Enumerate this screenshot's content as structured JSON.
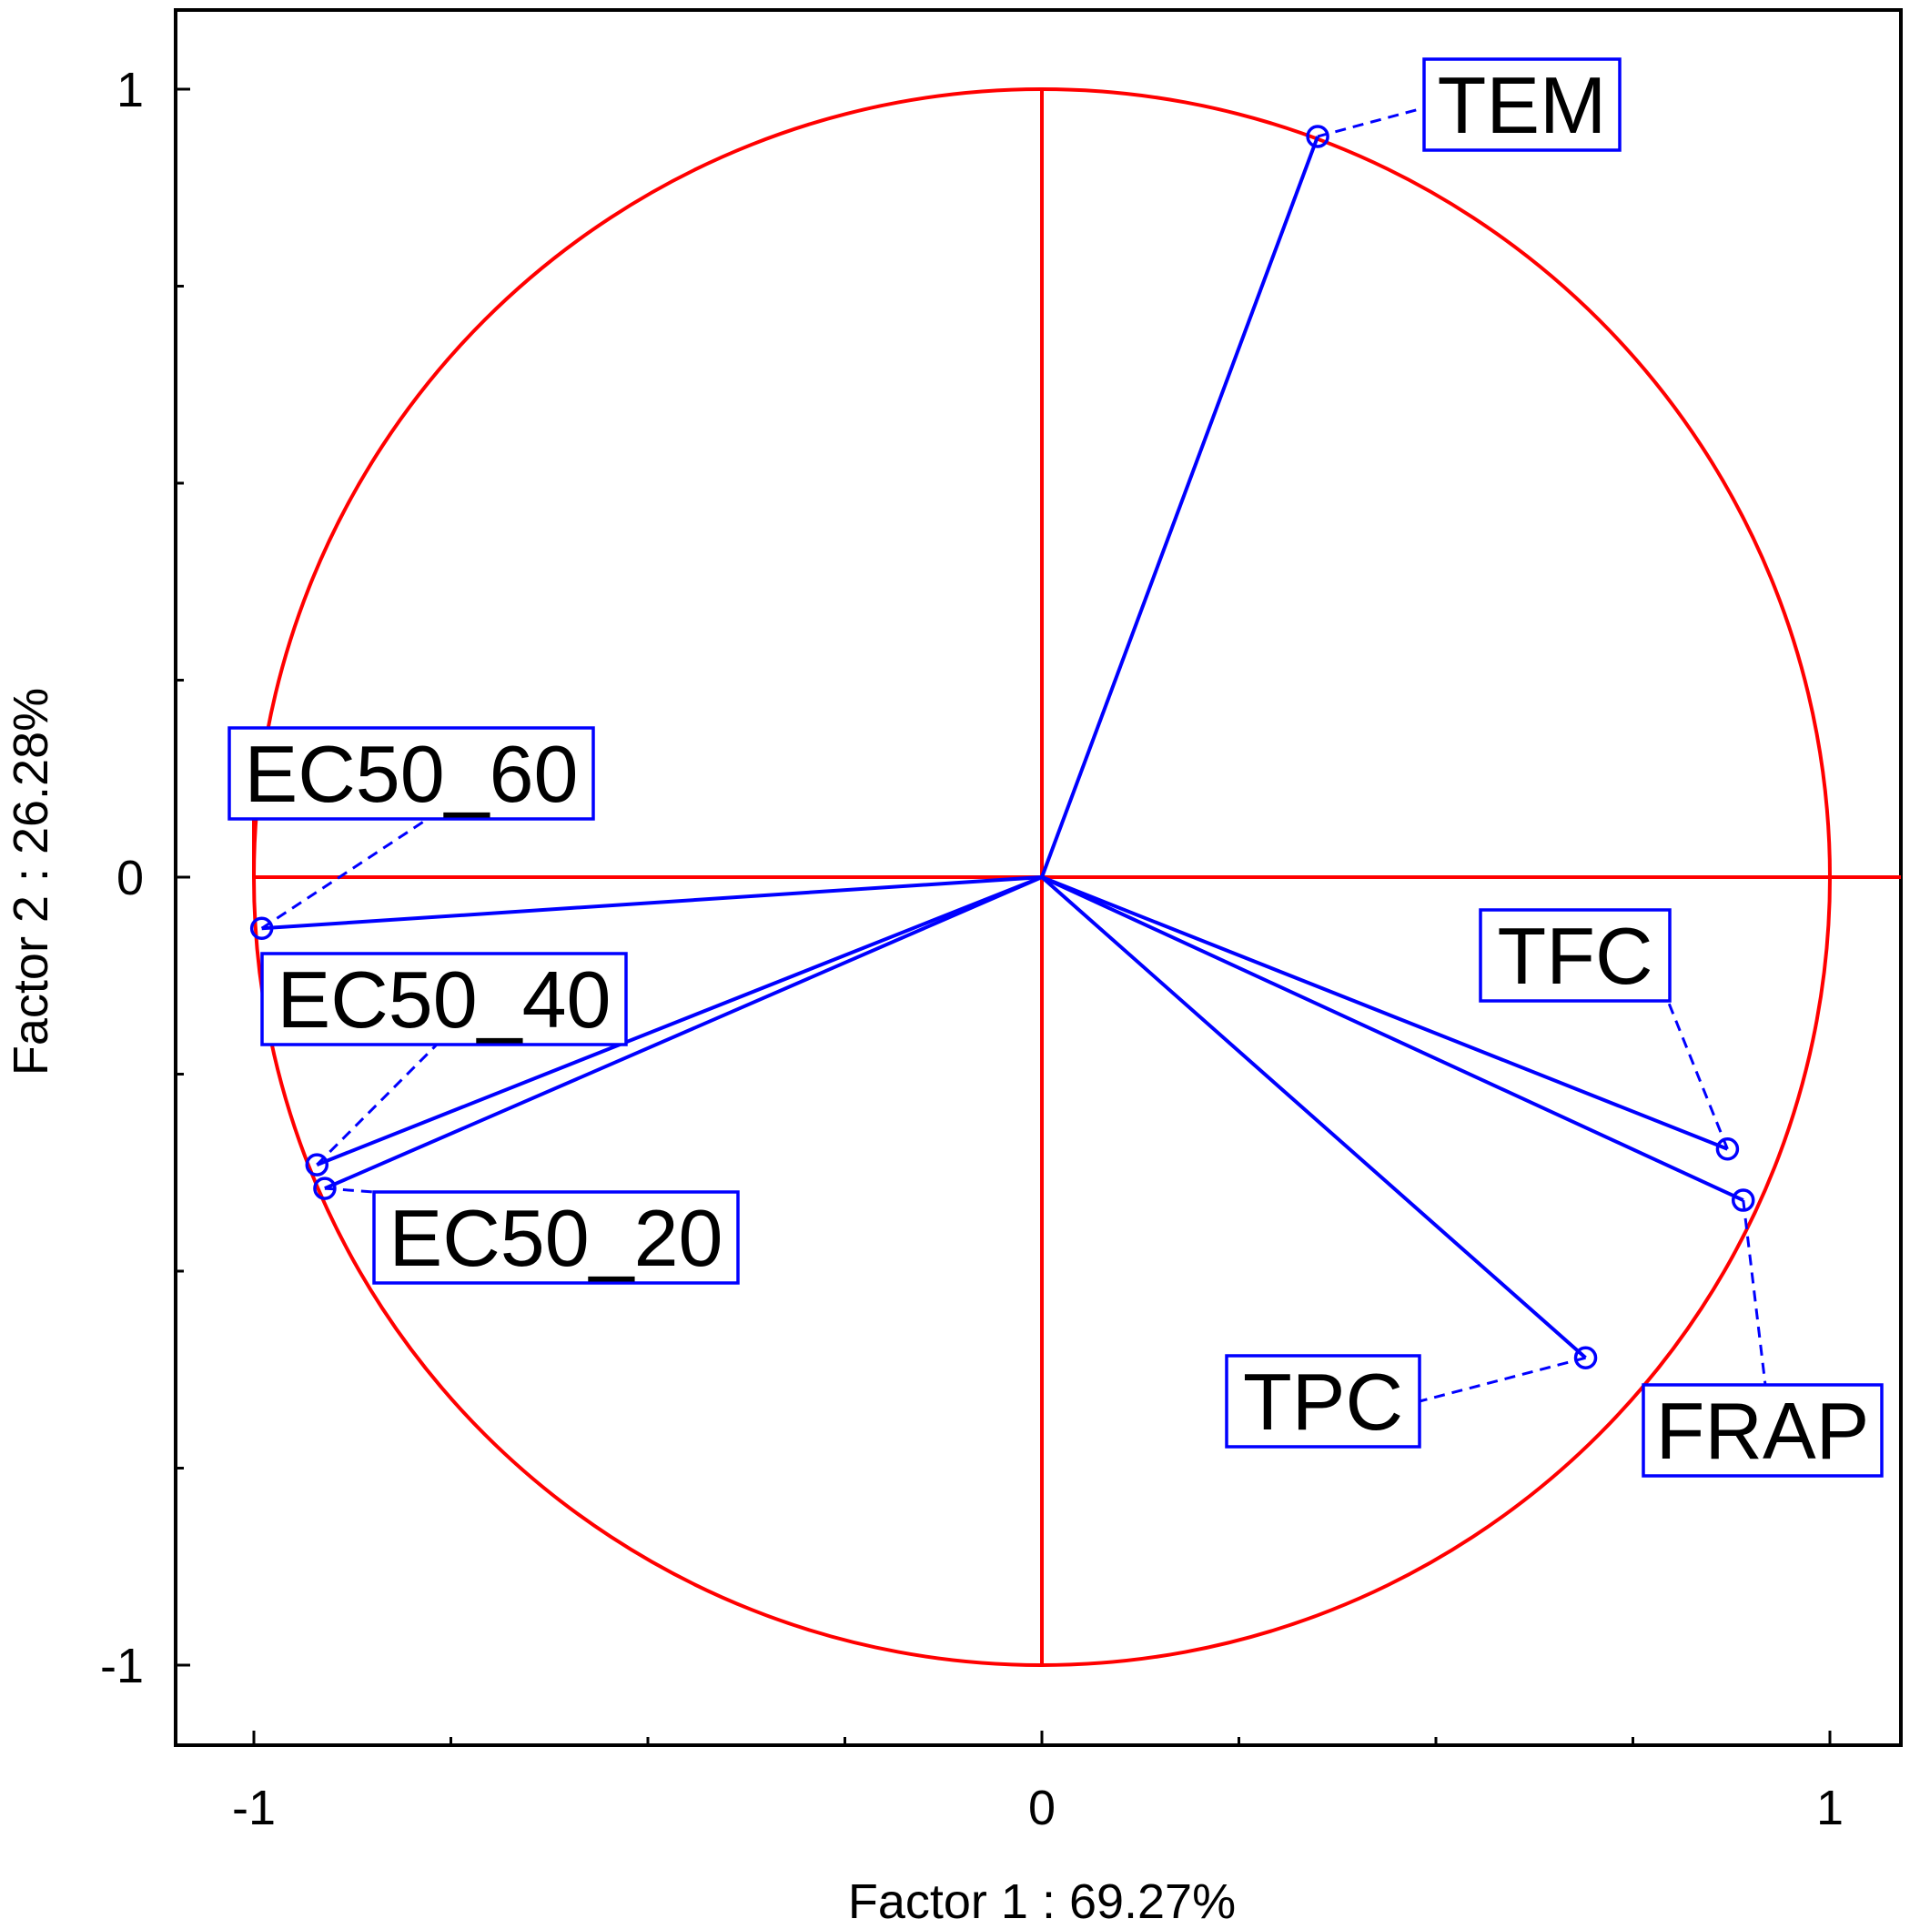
{
  "chart_data": {
    "type": "scatter",
    "subtype": "pca-correlation-circle",
    "title": "",
    "xlabel": "Factor 1 : 69.27%",
    "ylabel": "Factor 2 : 26.28%",
    "xlim": [
      -1.1,
      1.1
    ],
    "ylim": [
      -1.1,
      1.1
    ],
    "xticks": [
      -1,
      0,
      1
    ],
    "yticks": [
      -1,
      0,
      1
    ],
    "xtick_labels": [
      "-1",
      "0",
      "1"
    ],
    "ytick_labels": [
      "1",
      "0",
      "-1"
    ],
    "grid": false,
    "unit_circle": true,
    "colors": {
      "circle": "#ff0000",
      "vectors": "#0000ff",
      "labels_border": "#0000ff",
      "frame": "#000000"
    },
    "variables": [
      {
        "label": "TEM",
        "x": 0.35,
        "y": 0.94
      },
      {
        "label": "EC50_60",
        "x": -0.99,
        "y": -0.065
      },
      {
        "label": "EC50_40",
        "x": -0.92,
        "y": -0.365
      },
      {
        "label": "EC50_20",
        "x": -0.91,
        "y": -0.395
      },
      {
        "label": "TFC",
        "x": 0.87,
        "y": -0.345
      },
      {
        "label": "FRAP",
        "x": 0.89,
        "y": -0.41
      },
      {
        "label": "TPC",
        "x": 0.69,
        "y": -0.61
      }
    ]
  }
}
